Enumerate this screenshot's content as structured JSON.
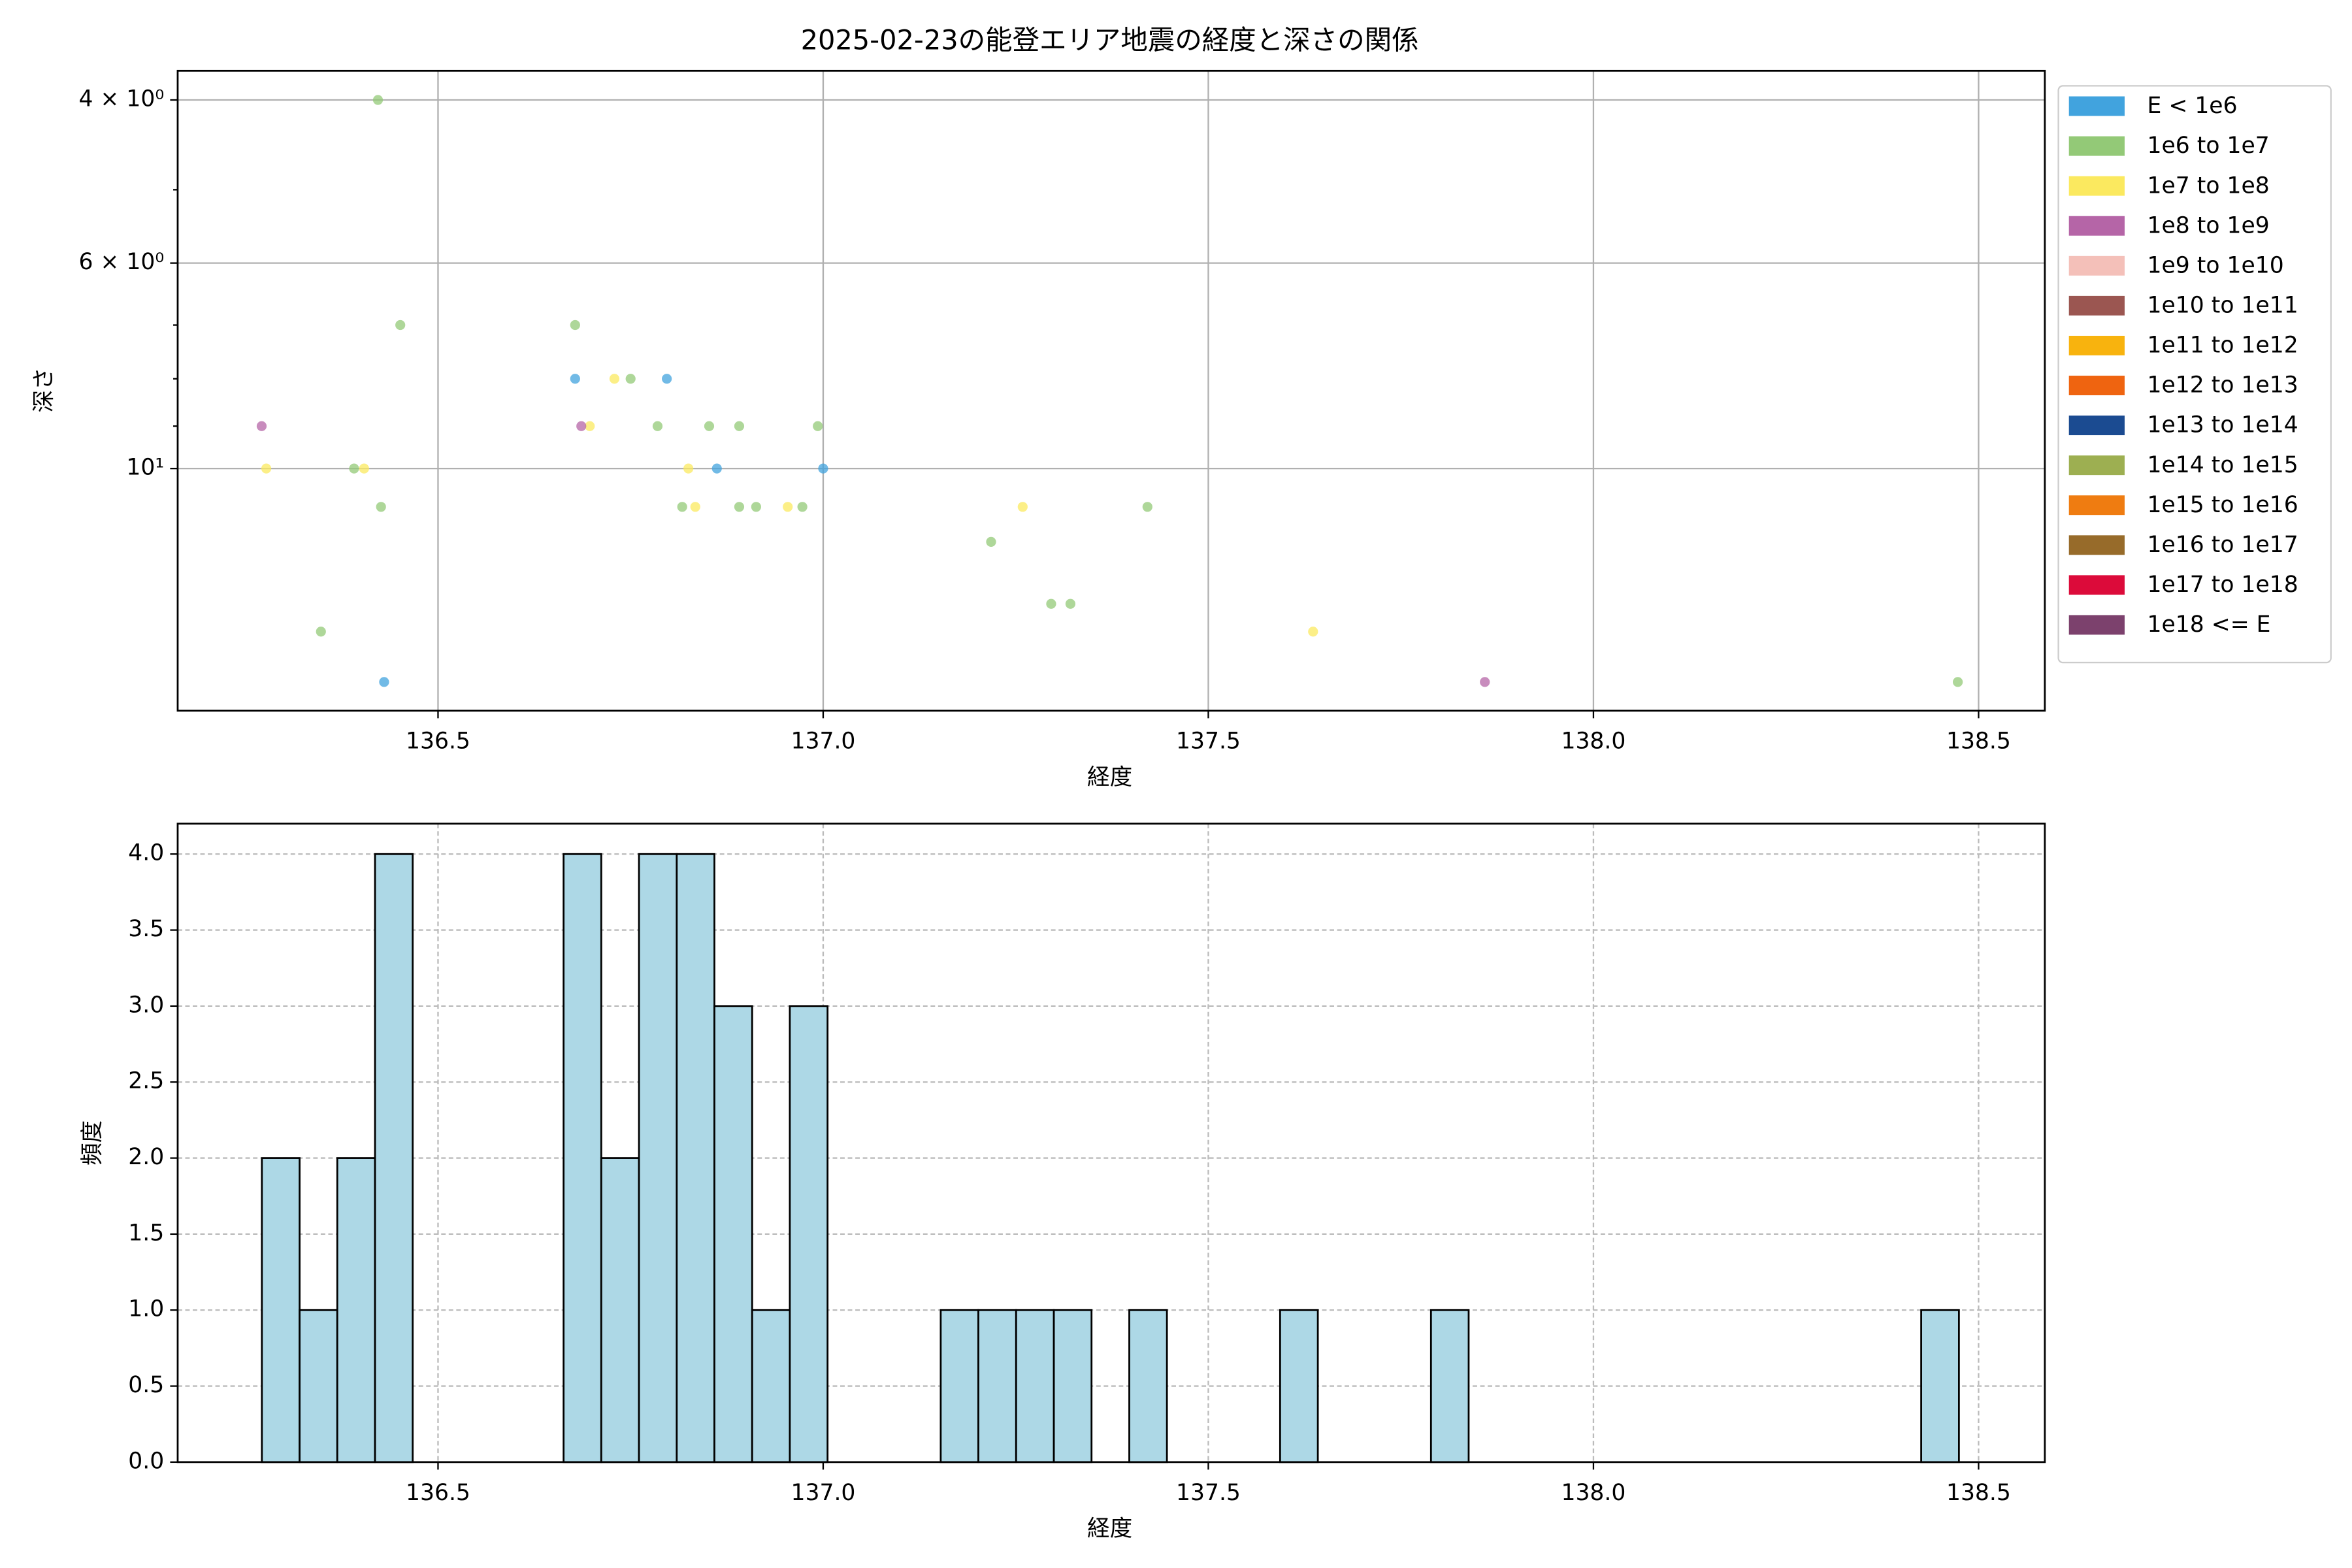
{
  "chart_data": [
    {
      "type": "scatter",
      "title": "2025-02-23の能登エリア地震の経度と深さの関係",
      "xlabel": "経度",
      "ylabel": "深さ",
      "xlim": [
        136.162,
        138.586
      ],
      "xticks": [
        136.5,
        {
          "value": 137,
          "label": "137.0"
        },
        137.5,
        {
          "value": 138,
          "label": "138.0"
        },
        138.5
      ],
      "yscale": "log",
      "ylim": [
        18.26,
        3.72
      ],
      "yticks": [
        {
          "value": 4,
          "label": "4 × 10⁰"
        },
        {
          "value": 6,
          "label": "6 × 10⁰"
        },
        {
          "value": 10,
          "label": "10¹"
        }
      ],
      "yminorticks": [
        5,
        7,
        8,
        9
      ],
      "grid": true,
      "legend": "outside upper right",
      "series": [
        {
          "name": "E < 1e6",
          "color": "#41a3de",
          "x": [
            136.678,
            136.797,
            136.862,
            137.0,
            136.43
          ],
          "y": [
            8,
            8,
            10,
            10,
            17
          ]
        },
        {
          "name": "1e6 to 1e7",
          "color": "#93c977",
          "x": [
            136.422,
            136.451,
            136.678,
            136.75,
            136.785,
            136.852,
            136.891,
            136.993,
            136.391,
            136.426,
            136.817,
            136.891,
            136.913,
            136.973,
            137.421,
            137.218,
            137.296,
            137.321,
            136.348,
            138.473
          ],
          "y": [
            4,
            7,
            7,
            8,
            9,
            9,
            9,
            9,
            10,
            11,
            11,
            11,
            11,
            11,
            11,
            12,
            14,
            14,
            15,
            17
          ]
        },
        {
          "name": "1e7 to 1e8",
          "color": "#fbe95f",
          "x": [
            136.729,
            136.697,
            136.277,
            136.404,
            136.825,
            136.834,
            136.954,
            137.259,
            137.636
          ],
          "y": [
            8,
            9,
            10,
            10,
            10,
            11,
            11,
            11,
            15
          ]
        },
        {
          "name": "1e8 to 1e9",
          "color": "#b565a7",
          "x": [
            136.271,
            136.686,
            137.859
          ],
          "y": [
            9,
            9,
            17
          ]
        },
        {
          "name": "1e9 to 1e10",
          "color": "#f4c0b9",
          "x": [],
          "y": []
        },
        {
          "name": "1e10 to 1e11",
          "color": "#9b5651",
          "x": [],
          "y": []
        },
        {
          "name": "1e11 to 1e12",
          "color": "#f8b30e",
          "x": [],
          "y": []
        },
        {
          "name": "1e12 to 1e13",
          "color": "#ef6410",
          "x": [],
          "y": []
        },
        {
          "name": "1e13 to 1e14",
          "color": "#1b4b91",
          "x": [],
          "y": []
        },
        {
          "name": "1e14 to 1e15",
          "color": "#9daf51",
          "x": [],
          "y": []
        },
        {
          "name": "1e15 to 1e16",
          "color": "#ef7c11",
          "x": [],
          "y": []
        },
        {
          "name": "1e16 to 1e17",
          "color": "#976b2a",
          "x": [],
          "y": []
        },
        {
          "name": "1e17 to 1e18",
          "color": "#dc0b3a",
          "x": [],
          "y": []
        },
        {
          "name": "1e18 <= E",
          "color": "#7c416d",
          "x": [],
          "y": []
        }
      ]
    },
    {
      "type": "histogram",
      "xlabel": "経度",
      "ylabel": "頻度",
      "color": "#add8e6",
      "edgecolor": "#000000",
      "xlim": [
        136.162,
        138.586
      ],
      "xticks": [
        136.5,
        {
          "value": 137,
          "label": "137.0"
        },
        137.5,
        {
          "value": 138,
          "label": "138.0"
        },
        138.5
      ],
      "ylim": [
        0,
        4.2
      ],
      "yticks": [
        {
          "value": 0,
          "label": "0.0"
        },
        0.5,
        {
          "value": 1,
          "label": "1.0"
        },
        1.5,
        {
          "value": 2,
          "label": "2.0"
        },
        2.5,
        {
          "value": 3,
          "label": "3.0"
        },
        3.5,
        {
          "value": 4,
          "label": "4.0"
        }
      ],
      "grid": true,
      "bins": [
        136.2713,
        136.3203,
        136.3692,
        136.4182,
        136.4671,
        136.5161,
        136.5651,
        136.614,
        136.663,
        136.7119,
        136.7609,
        136.8099,
        136.8588,
        136.9078,
        136.9567,
        137.0057,
        137.0547,
        137.1036,
        137.1526,
        137.2015,
        137.2505,
        137.2995,
        137.3484,
        137.3974,
        137.4463,
        137.4953,
        137.5443,
        137.5932,
        137.6422,
        137.6911,
        137.7401,
        137.7891,
        137.838,
        137.887,
        137.9359,
        137.9849,
        138.0339,
        138.0828,
        138.1318,
        138.1807,
        138.2297,
        138.2787,
        138.3276,
        138.3766,
        138.4255,
        138.4745
      ],
      "values": [
        2,
        1,
        2,
        4,
        0,
        0,
        0,
        0,
        4,
        2,
        4,
        4,
        3,
        1,
        3,
        0,
        0,
        0,
        1,
        1,
        1,
        1,
        0,
        1,
        0,
        0,
        0,
        1,
        0,
        0,
        0,
        1,
        0,
        0,
        0,
        0,
        0,
        0,
        0,
        0,
        0,
        0,
        0,
        0,
        1
      ]
    }
  ]
}
